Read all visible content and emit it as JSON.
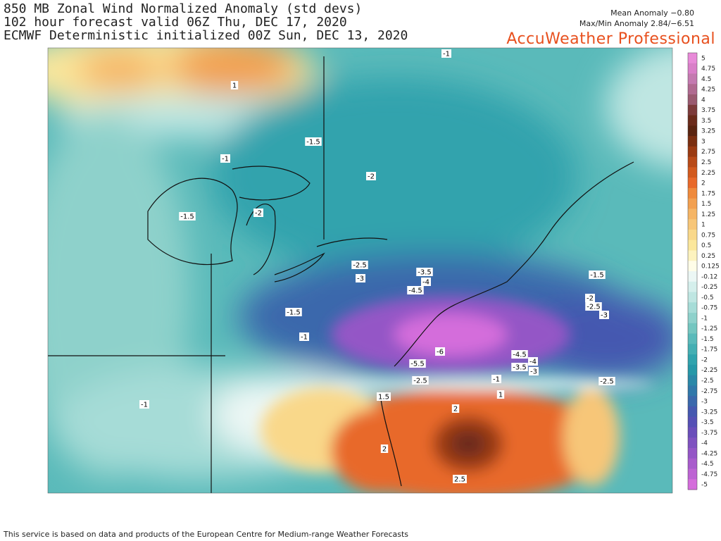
{
  "header": {
    "title_lines": [
      "850 MB Zonal Wind Normalized Anomaly (std devs)",
      "102 hour forecast valid 06Z Thu, DEC 17, 2020",
      "ECMWF Deterministic initialized 00Z Sun, DEC 13, 2020"
    ],
    "mean_anomaly": "Mean Anomaly −0.80",
    "max_min_anomaly": "Max/Min Anomaly 2.84/−6.51",
    "brand": "AccuWeather Professional"
  },
  "legend": {
    "labels": [
      "5",
      "4.75",
      "4.5",
      "4.25",
      "4",
      "3.75",
      "3.5",
      "3.25",
      "3",
      "2.75",
      "2.5",
      "2.25",
      "2",
      "1.75",
      "1.5",
      "1.25",
      "1",
      "0.75",
      "0.5",
      "0.25",
      "0.125",
      "-0.12",
      "-0.25",
      "-0.5",
      "-0.75",
      "-1",
      "-1.25",
      "-1.5",
      "-1.75",
      "-2",
      "-2.25",
      "-2.5",
      "-2.75",
      "-3",
      "-3.25",
      "-3.5",
      "-3.75",
      "-4",
      "-4.25",
      "-4.5",
      "-4.75",
      "-5"
    ],
    "colors": [
      "#e88ad8",
      "#d97fc8",
      "#c47ab0",
      "#b06a90",
      "#9a5a70",
      "#7d3b3b",
      "#6b2b1b",
      "#5a2410",
      "#7a2e10",
      "#9a3a12",
      "#b84a18",
      "#d25a1e",
      "#e8692a",
      "#ef8a3c",
      "#f2a050",
      "#f5b565",
      "#f7c678",
      "#f9d88a",
      "#fbe79c",
      "#fdf3bf",
      "#fffde8",
      "#ecf7f5",
      "#d5efec",
      "#bfe6e2",
      "#a6dcd7",
      "#8ed1cb",
      "#74c6c0",
      "#5ababa",
      "#44afb3",
      "#30a3ad",
      "#2698a8",
      "#2a88a8",
      "#3078aa",
      "#3a68ac",
      "#4558b0",
      "#5550b5",
      "#6a4eba",
      "#7f52c0",
      "#9456c6",
      "#a85ccc",
      "#bd64d3",
      "#d46ddb"
    ]
  },
  "contour_labels": [
    "-1",
    "1",
    "-1.5",
    "-1",
    "-2",
    "-1.5",
    "-2",
    "-2.5",
    "-3",
    "-3.5",
    "-4",
    "-4.5",
    "-1.5",
    "-1",
    "-1.5",
    "-2",
    "-2.5",
    "-3",
    "-6",
    "-4.5",
    "-4",
    "-3.5",
    "-3",
    "-5.5",
    "-2.5",
    "-1",
    "-2.5",
    "1",
    "1.5",
    "-1",
    "2",
    "2",
    "2.5"
  ],
  "footer": "This service is based on data and products of the European Centre for Medium-range Weather Forecasts"
}
